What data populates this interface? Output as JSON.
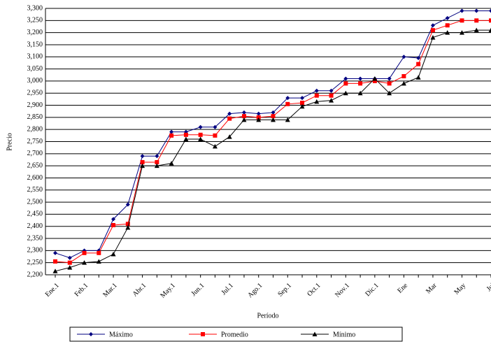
{
  "chart_data": {
    "type": "line",
    "x_label": "Período",
    "y_label": "Precio",
    "categories": [
      "Ene.1",
      null,
      "Feb.1",
      null,
      "Mar.1",
      null,
      "Abr.1",
      null,
      "May.1",
      null,
      "Jun.1",
      null,
      "Jul.1",
      null,
      "Ago.1",
      null,
      "Sep.1",
      null,
      "Oct.1",
      null,
      "Nov.1",
      null,
      "Dic.1",
      null,
      "Ene",
      null,
      "Mar",
      null,
      "May",
      null,
      "Jul"
    ],
    "series": [
      {
        "name": "Máximo",
        "color": "#000080",
        "marker": "diamond",
        "values": [
          2290,
          2270,
          2300,
          2300,
          2430,
          2490,
          2690,
          2690,
          2790,
          2790,
          2810,
          2810,
          2865,
          2870,
          2865,
          2870,
          2930,
          2930,
          2960,
          2960,
          3010,
          3010,
          3010,
          3010,
          3100,
          3095,
          3230,
          3260,
          3290,
          3290,
          3290
        ]
      },
      {
        "name": "Promedio",
        "color": "#ff0000",
        "marker": "square",
        "values": [
          2255,
          2250,
          2290,
          2290,
          2405,
          2410,
          2665,
          2665,
          2775,
          2778,
          2778,
          2775,
          2845,
          2855,
          2850,
          2855,
          2905,
          2910,
          2940,
          2940,
          2990,
          2990,
          3000,
          2990,
          3020,
          3070,
          3210,
          3230,
          3250,
          3250,
          3250
        ]
      },
      {
        "name": "Mínimo",
        "color": "#000000",
        "marker": "triangle",
        "values": [
          2215,
          2230,
          2250,
          2255,
          2285,
          2395,
          2650,
          2650,
          2660,
          2760,
          2760,
          2730,
          2770,
          2840,
          2840,
          2840,
          2840,
          2895,
          2915,
          2920,
          2950,
          2950,
          3010,
          2950,
          2990,
          3015,
          3180,
          3200,
          3200,
          3210,
          3210
        ]
      }
    ],
    "ylim": [
      2200,
      3300
    ],
    "yticks": [
      {
        "value": 2200,
        "label": "2,200"
      },
      {
        "value": 2250,
        "label": "2,250"
      },
      {
        "value": 2300,
        "label": "2,300"
      },
      {
        "value": 2350,
        "label": "2,350"
      },
      {
        "value": 2400,
        "label": "2,400"
      },
      {
        "value": 2450,
        "label": "2,450"
      },
      {
        "value": 2500,
        "label": "2,500"
      },
      {
        "value": 2550,
        "label": "2,550"
      },
      {
        "value": 2600,
        "label": "2,600"
      },
      {
        "value": 2650,
        "label": "2,650"
      },
      {
        "value": 2700,
        "label": "2,700"
      },
      {
        "value": 2750,
        "label": "2,750"
      },
      {
        "value": 2800,
        "label": "2,800"
      },
      {
        "value": 2850,
        "label": "2,850"
      },
      {
        "value": 2900,
        "label": "2,900"
      },
      {
        "value": 2950,
        "label": "2,950"
      },
      {
        "value": 3000,
        "label": "3,000"
      },
      {
        "value": 3050,
        "label": "3,050"
      },
      {
        "value": 3100,
        "label": "3,100"
      },
      {
        "value": 3150,
        "label": "3,150"
      },
      {
        "value": 3200,
        "label": "3,200"
      },
      {
        "value": 3250,
        "label": "3,250"
      },
      {
        "value": 3300,
        "label": "3,300"
      }
    ],
    "grid": true
  }
}
